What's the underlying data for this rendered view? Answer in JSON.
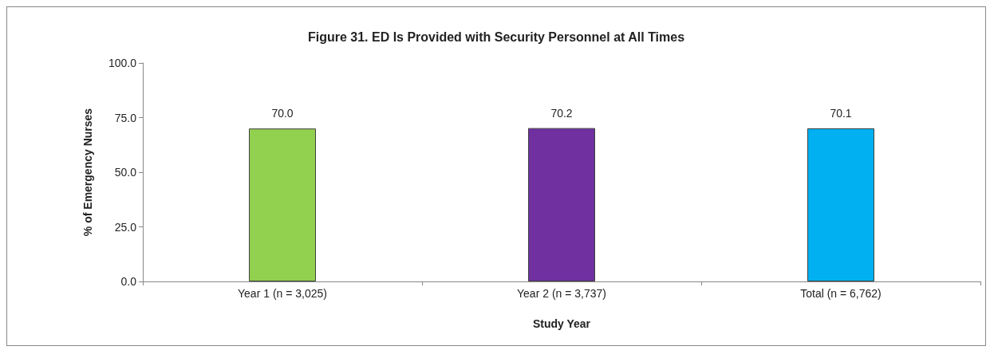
{
  "chart_data": {
    "type": "bar",
    "title": "Figure 31. ED Is Provided with Security Personnel at All Times",
    "xlabel": "Study Year",
    "ylabel": "% of Emergency Nurses",
    "categories": [
      "Year 1 (n = 3,025)",
      "Year 2 (n = 3,737)",
      "Total (n = 6,762)"
    ],
    "values": [
      70.0,
      70.2,
      70.1
    ],
    "value_labels": [
      "70.0",
      "70.2",
      "70.1"
    ],
    "colors": [
      "#92d050",
      "#7030a0",
      "#00b0f0"
    ],
    "ylim": [
      0,
      100
    ],
    "yticks": [
      {
        "value": 0,
        "label": "0.0"
      },
      {
        "value": 25,
        "label": "25.0"
      },
      {
        "value": 50,
        "label": "50.0"
      },
      {
        "value": 75,
        "label": "75.0"
      },
      {
        "value": 100,
        "label": "100.0"
      }
    ],
    "grid": false
  }
}
